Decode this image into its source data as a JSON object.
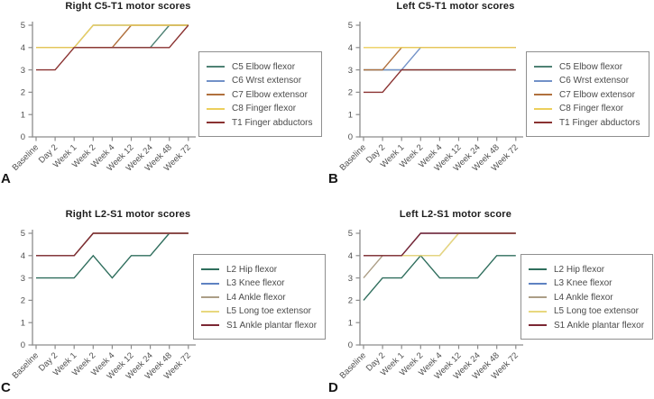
{
  "figure": {
    "panel_letters": [
      "A",
      "B",
      "C",
      "D"
    ]
  },
  "style": {
    "background": "#ffffff",
    "axis_color": "#8c8c8c",
    "tick_label_color": "#4f4f4f",
    "title_color": "#1d1d1d",
    "legend_border_color": "#8f8f8f",
    "legend_text_color": "#4a4a4a"
  },
  "chart_data": [
    {
      "type": "line",
      "panel": "A",
      "title": "Right C5-T1 motor scores",
      "xlabel": "",
      "ylabel": "",
      "ylim": [
        0,
        5
      ],
      "yticks": [
        0,
        1,
        2,
        3,
        4,
        5
      ],
      "grid": false,
      "legend_position": "right",
      "categories": [
        "Baseline",
        "Day 2",
        "Week 1",
        "Week 2",
        "Week 4",
        "Week 12",
        "Week 24",
        "Week 48",
        "Week 72"
      ],
      "series": [
        {
          "name": "C5 Elbow flexor",
          "color": "#4e8174",
          "values": [
            4,
            4,
            4,
            4,
            4,
            4,
            4,
            5,
            5
          ]
        },
        {
          "name": "C6 Wrst extensor",
          "color": "#7291c8",
          "values": [
            4,
            4,
            4,
            5,
            5,
            5,
            5,
            5,
            5
          ]
        },
        {
          "name": "C7 Elbow extensor",
          "color": "#b0703d",
          "values": [
            4,
            4,
            4,
            4,
            4,
            5,
            5,
            5,
            5
          ]
        },
        {
          "name": "C8 Finger flexor",
          "color": "#eccf5c",
          "values": [
            4,
            4,
            4,
            5,
            5,
            5,
            5,
            5,
            5
          ]
        },
        {
          "name": "T1 Finger abductors",
          "color": "#8a3231",
          "values": [
            3,
            3,
            4,
            4,
            4,
            4,
            4,
            4,
            5
          ]
        }
      ]
    },
    {
      "type": "line",
      "panel": "B",
      "title": "Left C5-T1 motor scores",
      "xlabel": "",
      "ylabel": "",
      "ylim": [
        0,
        5
      ],
      "yticks": [
        0,
        1,
        2,
        3,
        4,
        5
      ],
      "grid": false,
      "legend_position": "right",
      "categories": [
        "Baseline",
        "Day 2",
        "Week 1",
        "Week 2",
        "Week 4",
        "Week 12",
        "Week 24",
        "Week 48",
        "Week 72"
      ],
      "series": [
        {
          "name": "C5 Elbow flexor",
          "color": "#4e8174",
          "values": [
            3,
            3,
            3,
            3,
            3,
            3,
            3,
            3,
            3
          ]
        },
        {
          "name": "C6 Wrst extensor",
          "color": "#7291c8",
          "values": [
            3,
            3,
            3,
            4,
            4,
            4,
            4,
            4,
            4
          ]
        },
        {
          "name": "C7 Elbow extensor",
          "color": "#b0703d",
          "values": [
            3,
            3,
            4,
            4,
            4,
            4,
            4,
            4,
            4
          ]
        },
        {
          "name": "C8 Finger flexor",
          "color": "#eccf5c",
          "values": [
            4,
            4,
            4,
            4,
            4,
            4,
            4,
            4,
            4
          ]
        },
        {
          "name": "T1 Finger abductors",
          "color": "#8a3231",
          "values": [
            2,
            2,
            3,
            3,
            3,
            3,
            3,
            3,
            3
          ]
        }
      ]
    },
    {
      "type": "line",
      "panel": "C",
      "title": "Right L2-S1 motor scores",
      "xlabel": "",
      "ylabel": "",
      "ylim": [
        0,
        5
      ],
      "yticks": [
        0,
        1,
        2,
        3,
        4,
        5
      ],
      "grid": false,
      "legend_position": "right",
      "categories": [
        "Baseline",
        "Day 2",
        "Week 1",
        "Week 2",
        "Week 4",
        "Week 12",
        "Week 24",
        "Week 48",
        "Week 72"
      ],
      "series": [
        {
          "name": "L2 Hip flexor",
          "color": "#2f6e5d",
          "values": [
            3,
            3,
            3,
            4,
            3,
            4,
            4,
            5,
            5
          ]
        },
        {
          "name": "L3 Knee flexor",
          "color": "#5e82c2",
          "values": [
            4,
            4,
            4,
            5,
            5,
            5,
            5,
            5,
            5
          ]
        },
        {
          "name": "L4 Ankle flexor",
          "color": "#ac9e86",
          "values": [
            4,
            4,
            4,
            5,
            5,
            5,
            5,
            5,
            5
          ]
        },
        {
          "name": "L5 Long toe extensor",
          "color": "#e8d87e",
          "values": [
            4,
            4,
            4,
            5,
            5,
            5,
            5,
            5,
            5
          ]
        },
        {
          "name": "S1 Ankle plantar flexor",
          "color": "#7b2733",
          "values": [
            4,
            4,
            4,
            5,
            5,
            5,
            5,
            5,
            5
          ]
        }
      ]
    },
    {
      "type": "line",
      "panel": "D",
      "title": "Left L2-S1 motor score",
      "xlabel": "",
      "ylabel": "",
      "ylim": [
        0,
        5
      ],
      "yticks": [
        0,
        1,
        2,
        3,
        4,
        5
      ],
      "grid": false,
      "legend_position": "right",
      "categories": [
        "Baseline",
        "Day 2",
        "Week 1",
        "Week 2",
        "Week 4",
        "Week 12",
        "Week 24",
        "Week 48",
        "Week 72"
      ],
      "series": [
        {
          "name": "L2 Hip flexor",
          "color": "#2f6e5d",
          "values": [
            2,
            3,
            3,
            4,
            3,
            3,
            3,
            4,
            4
          ]
        },
        {
          "name": "L3 Knee flexor",
          "color": "#5e82c2",
          "values": [
            4,
            4,
            4,
            5,
            5,
            5,
            5,
            5,
            5
          ]
        },
        {
          "name": "L4 Ankle flexor",
          "color": "#ac9e86",
          "values": [
            3,
            4,
            4,
            4,
            4,
            5,
            5,
            5,
            5
          ]
        },
        {
          "name": "L5 Long toe extensor",
          "color": "#e8d87e",
          "values": [
            4,
            4,
            4,
            4,
            4,
            5,
            5,
            5,
            5
          ]
        },
        {
          "name": "S1 Ankle plantar flexor",
          "color": "#7b2733",
          "values": [
            4,
            4,
            4,
            5,
            5,
            5,
            5,
            5,
            5
          ]
        }
      ]
    }
  ]
}
